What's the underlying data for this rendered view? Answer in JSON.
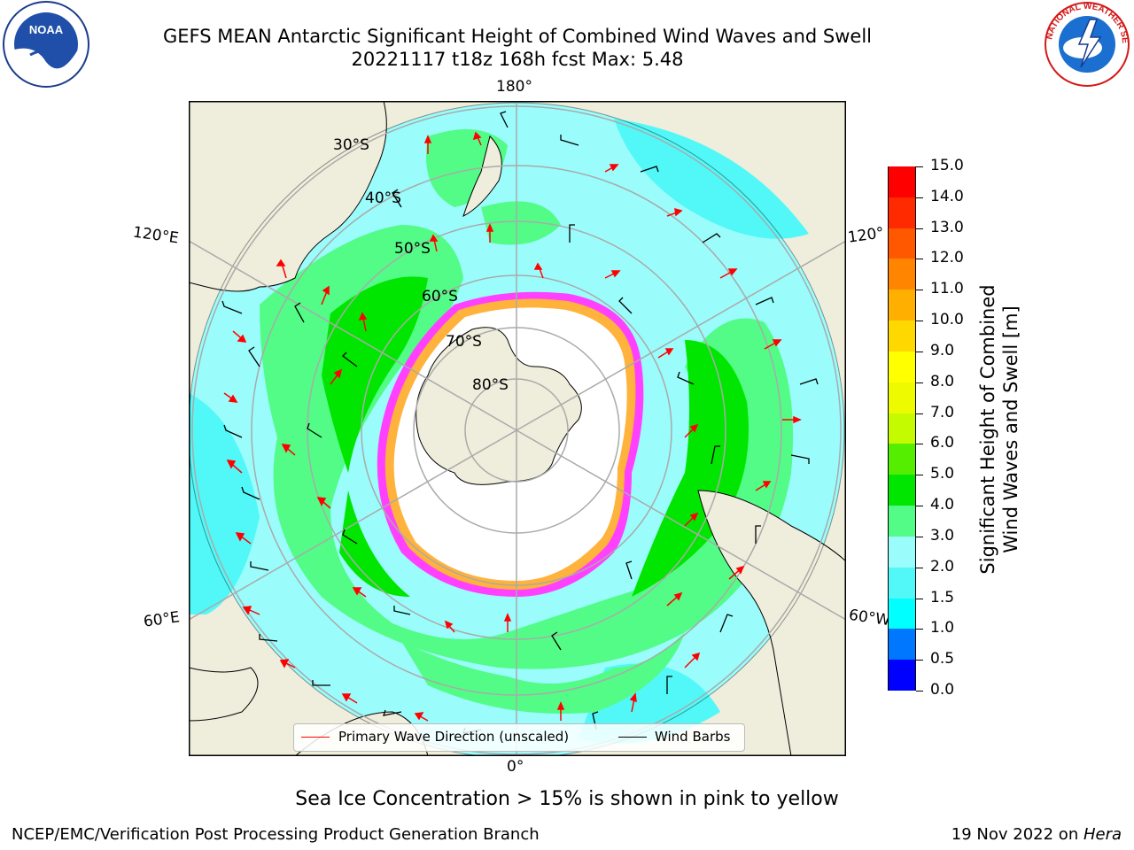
{
  "header": {
    "title_line1": "GEFS MEAN Antarctic Significant Height of Combined Wind Waves and Swell",
    "title_line2": "20221117 t18z 168h fcst   Max: 5.48"
  },
  "logos": {
    "noaa": {
      "text": "NOAA",
      "ring_text": "NATIONAL OCEANIC AND ATMOSPHERIC ADMINISTRATION · U.S. DEPARTMENT OF COMMERCE"
    },
    "nws": {
      "ring_text": "NATIONAL WEATHER SERVICE"
    }
  },
  "map": {
    "projection": "south-polar-stereographic",
    "longitude_labels": {
      "top": "180°",
      "bottom": "0°",
      "left_upper": "120°E",
      "left_lower": "60°E",
      "right_upper": "120°",
      "right_lower": "60°W"
    },
    "latitude_labels": [
      "30°S",
      "40°S",
      "50°S",
      "60°S",
      "70°S",
      "80°S"
    ],
    "colors": {
      "land": "#efeddb",
      "ocean_low": "#9bfcfc",
      "ocean_mid": "#52fc86",
      "ocean_high": "#00e600",
      "ice": "#ff40ff",
      "ice_edge": "#ffb23c",
      "wave_arrow": "#ff0000",
      "wind_barb": "#000000"
    }
  },
  "legend": {
    "primary_wave": "Primary Wave Direction (unscaled)",
    "wind_barbs": "Wind Barbs"
  },
  "colorbar": {
    "label_line1": "Significant Height of Combined",
    "label_line2": "Wind Waves and Swell [m]",
    "ticks": [
      "0.0",
      "0.5",
      "1.0",
      "1.5",
      "2.0",
      "3.0",
      "4.0",
      "5.0",
      "6.0",
      "7.0",
      "8.0",
      "9.0",
      "10.0",
      "11.0",
      "12.0",
      "13.0",
      "14.0",
      "15.0"
    ],
    "colors": [
      "#0000ff",
      "#0077ff",
      "#00ffff",
      "#52f8f8",
      "#9bfcfc",
      "#52fc86",
      "#00e600",
      "#55ee00",
      "#c5fb00",
      "#eefb00",
      "#ffff00",
      "#ffd800",
      "#ffaf00",
      "#ff8500",
      "#ff5800",
      "#ff2a00",
      "#ff0000"
    ]
  },
  "note": "Sea Ice Concentration > 15% is shown in pink to yellow",
  "footer": {
    "left": "NCEP/EMC/Verification Post Processing Product Generation Branch",
    "right_date": "19 Nov 2022 on ",
    "right_host": "Hera"
  }
}
